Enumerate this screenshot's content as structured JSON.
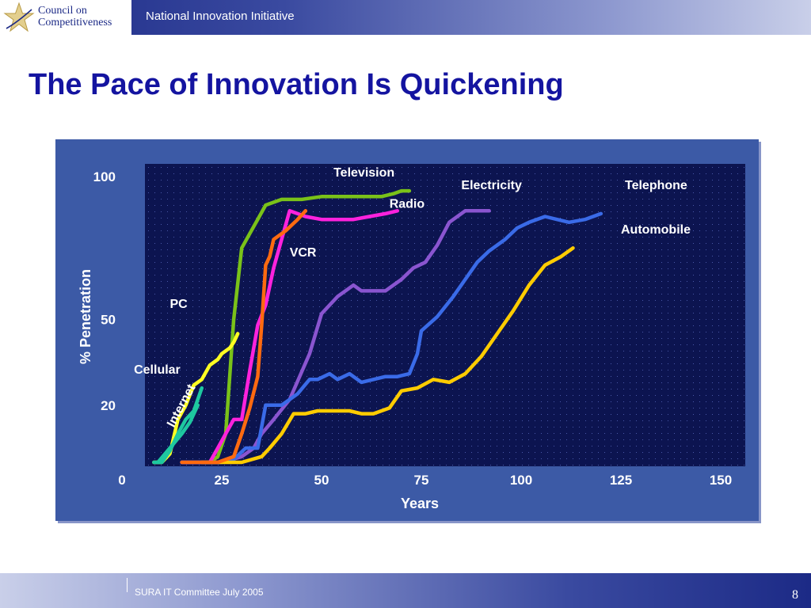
{
  "header": {
    "logo_line1": "Council on",
    "logo_line2": "Competitiveness",
    "title": "National Innovation Initiative"
  },
  "slide": {
    "title": "The Pace of Innovation Is Quickening"
  },
  "footer": {
    "text": "SURA  IT Committee July 2005",
    "page_number": "8"
  },
  "colors": {
    "plot_background": "#0c1450",
    "panel_background": "#3c5aa6"
  },
  "chart_data": {
    "type": "line",
    "xlabel": "Years",
    "ylabel": "% Penetration",
    "xlim": [
      0,
      150
    ],
    "ylim": [
      0,
      100
    ],
    "x_ticks": [
      {
        "value": 0,
        "label": "0"
      },
      {
        "value": 25,
        "label": "25"
      },
      {
        "value": 50,
        "label": "50"
      },
      {
        "value": 75,
        "label": "75"
      },
      {
        "value": 100,
        "label": "100"
      },
      {
        "value": 125,
        "label": "125"
      },
      {
        "value": 150,
        "label": "150"
      }
    ],
    "y_ticks": [
      {
        "value": 20,
        "label": "20"
      },
      {
        "value": 50,
        "label": "50"
      },
      {
        "value": 100,
        "label": "100"
      }
    ],
    "grid": "dotted",
    "series": [
      {
        "name": "Television",
        "color": "#7ac219",
        "x": [
          15,
          19,
          22,
          24,
          26,
          28,
          30,
          32,
          34,
          36,
          40,
          45,
          50,
          55,
          60,
          65,
          68,
          70,
          72
        ],
        "y": [
          0,
          0,
          0,
          2,
          10,
          50,
          75,
          80,
          85,
          90,
          92,
          92,
          93,
          93,
          93,
          93,
          94,
          95,
          95
        ]
      },
      {
        "name": "Radio",
        "color": "#ff22dd",
        "x": [
          15,
          20,
          22,
          24,
          26,
          28,
          30,
          32,
          34,
          36,
          38,
          40,
          42,
          46,
          50,
          54,
          58,
          62,
          66,
          69
        ],
        "y": [
          0,
          0,
          0,
          5,
          10,
          15,
          15,
          32,
          48,
          55,
          68,
          78,
          88,
          86,
          85,
          85,
          85,
          86,
          87,
          88
        ]
      },
      {
        "name": "Electricity",
        "color": "#8a55d0",
        "x": [
          15,
          20,
          25,
          30,
          33,
          35,
          38,
          42,
          47,
          50,
          54,
          58,
          60,
          63,
          66,
          70,
          73,
          76,
          79,
          82,
          86,
          90,
          92
        ],
        "y": [
          0,
          0,
          0,
          2,
          5,
          10,
          15,
          22,
          38,
          52,
          58,
          62,
          60,
          60,
          60,
          64,
          68,
          70,
          76,
          84,
          88,
          88,
          88
        ]
      },
      {
        "name": "Telephone",
        "color": "#3a6be8",
        "x": [
          15,
          20,
          24,
          28,
          31,
          34,
          36,
          40,
          44,
          47,
          49,
          52,
          54,
          57,
          60,
          63,
          66,
          69,
          72,
          74,
          75,
          79,
          83,
          86,
          89,
          92,
          96,
          99,
          102,
          106,
          109,
          112,
          116,
          120
        ],
        "y": [
          0,
          0,
          0,
          1,
          5,
          5,
          20,
          20,
          24,
          29,
          29,
          31,
          29,
          31,
          28,
          29,
          30,
          30,
          31,
          38,
          46,
          51,
          58,
          64,
          70,
          74,
          78,
          82,
          84,
          86,
          85,
          84,
          85,
          87
        ]
      },
      {
        "name": "Automobile",
        "color": "#ffcc00",
        "x": [
          20,
          25,
          30,
          35,
          37,
          40,
          43,
          46,
          49,
          52,
          54,
          57,
          60,
          63,
          67,
          70,
          74,
          78,
          82,
          86,
          90,
          94,
          98,
          102,
          106,
          110,
          113
        ],
        "y": [
          0,
          0,
          0,
          2,
          5,
          10,
          17,
          17,
          18,
          18,
          18,
          18,
          17,
          17,
          19,
          25,
          26,
          29,
          28,
          31,
          37,
          45,
          53,
          62,
          69,
          72,
          75
        ]
      },
      {
        "name": "VCR",
        "color": "#ff6a10",
        "x": [
          15,
          20,
          24,
          26,
          28,
          30,
          32,
          34,
          35,
          36,
          37,
          38,
          41,
          44,
          46
        ],
        "y": [
          0,
          0,
          0,
          1,
          2,
          10,
          19,
          30,
          48,
          69,
          72,
          78,
          81,
          85,
          88
        ]
      },
      {
        "name": "PC",
        "color": "#ffff22",
        "x": [
          8,
          10,
          12,
          14,
          16,
          18,
          20,
          22,
          24,
          25,
          27,
          28,
          29
        ],
        "y": [
          0,
          0,
          3,
          15,
          20,
          27,
          29,
          34,
          36,
          38,
          40,
          42,
          45
        ]
      },
      {
        "name": "Cellular",
        "color": "#1ec8a0",
        "x": [
          8,
          10,
          12,
          14,
          16,
          18,
          20
        ],
        "y": [
          0,
          0,
          4,
          10,
          15,
          18,
          26
        ]
      },
      {
        "name": "Internet",
        "color": "#1ec8a0",
        "x": [
          9,
          12,
          15,
          17,
          19
        ],
        "y": [
          0,
          5,
          10,
          14,
          20
        ]
      }
    ],
    "annotations": [
      {
        "text": "Television",
        "x": 53,
        "y": 100,
        "color": "#ffffff"
      },
      {
        "text": "Electricity",
        "x": 85,
        "y": 95.5,
        "color": "#ffffff"
      },
      {
        "text": "Telephone",
        "x": 126,
        "y": 95.5,
        "color": "#ffffff"
      },
      {
        "text": "Radio",
        "x": 67,
        "y": 89,
        "color": "#ffffff"
      },
      {
        "text": "Automobile",
        "x": 125,
        "y": 80,
        "color": "#ffffff"
      },
      {
        "text": "VCR",
        "x": 42,
        "y": 72,
        "color": "#ffffff"
      },
      {
        "text": "PC",
        "x": 12,
        "y": 54,
        "color": "#ffffff"
      },
      {
        "text": "Cellular",
        "x": 3,
        "y": 31,
        "color": "#ffffff"
      },
      {
        "text": "Internet",
        "x": 13,
        "y": 12,
        "color": "#ffffff",
        "rotate": -62
      }
    ]
  }
}
